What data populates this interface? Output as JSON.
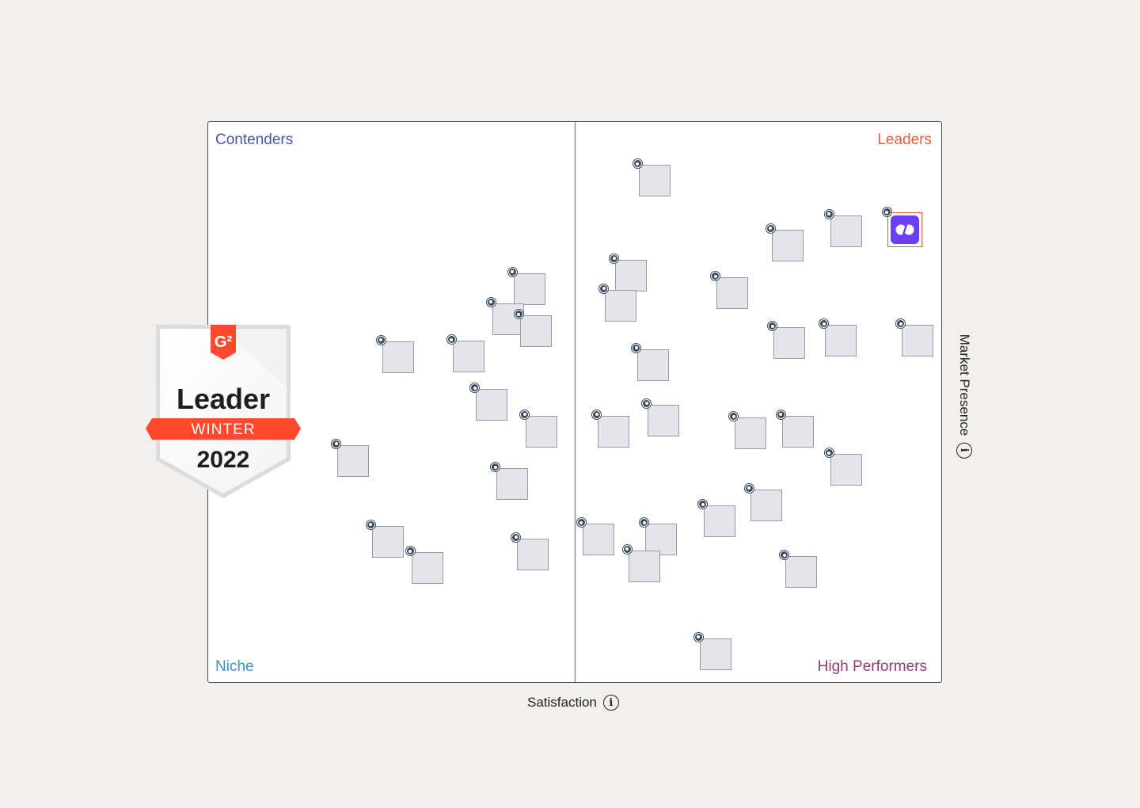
{
  "chart_data": {
    "type": "scatter",
    "title": "",
    "xlabel": "Satisfaction",
    "ylabel": "Market Presence",
    "xlim": [
      0,
      10
    ],
    "ylim": [
      0,
      10
    ],
    "grid": true,
    "quadrants": {
      "top_left": "Contenders",
      "top_right": "Leaders",
      "bottom_left": "Niche",
      "bottom_right": "High Performers"
    },
    "points": [
      {
        "x": 6.09,
        "y": 8.95,
        "featured": false
      },
      {
        "x": 8.7,
        "y": 8.05,
        "featured": false
      },
      {
        "x": 9.5,
        "y": 8.07,
        "featured": true
      },
      {
        "x": 7.9,
        "y": 7.8,
        "featured": false
      },
      {
        "x": 5.77,
        "y": 7.26,
        "featured": false
      },
      {
        "x": 4.38,
        "y": 7.02,
        "featured": false
      },
      {
        "x": 5.63,
        "y": 6.72,
        "featured": false
      },
      {
        "x": 7.15,
        "y": 6.94,
        "featured": false
      },
      {
        "x": 4.09,
        "y": 6.48,
        "featured": false
      },
      {
        "x": 4.47,
        "y": 6.26,
        "featured": false
      },
      {
        "x": 2.59,
        "y": 5.8,
        "featured": false
      },
      {
        "x": 3.55,
        "y": 5.81,
        "featured": false
      },
      {
        "x": 6.07,
        "y": 5.66,
        "featured": false
      },
      {
        "x": 7.93,
        "y": 6.05,
        "featured": false
      },
      {
        "x": 8.63,
        "y": 6.09,
        "featured": false
      },
      {
        "x": 9.68,
        "y": 6.09,
        "featured": false
      },
      {
        "x": 3.87,
        "y": 4.95,
        "featured": false
      },
      {
        "x": 4.55,
        "y": 4.47,
        "featured": false
      },
      {
        "x": 5.53,
        "y": 4.47,
        "featured": false
      },
      {
        "x": 6.21,
        "y": 4.67,
        "featured": false
      },
      {
        "x": 7.4,
        "y": 4.44,
        "featured": false
      },
      {
        "x": 8.04,
        "y": 4.47,
        "featured": false
      },
      {
        "x": 1.98,
        "y": 3.95,
        "featured": false
      },
      {
        "x": 4.15,
        "y": 3.53,
        "featured": false
      },
      {
        "x": 8.7,
        "y": 3.79,
        "featured": false
      },
      {
        "x": 7.61,
        "y": 3.16,
        "featured": false
      },
      {
        "x": 6.98,
        "y": 2.87,
        "featured": false
      },
      {
        "x": 2.45,
        "y": 2.51,
        "featured": false
      },
      {
        "x": 2.99,
        "y": 2.03,
        "featured": false
      },
      {
        "x": 4.43,
        "y": 2.28,
        "featured": false
      },
      {
        "x": 5.32,
        "y": 2.54,
        "featured": false
      },
      {
        "x": 6.18,
        "y": 2.54,
        "featured": false
      },
      {
        "x": 5.95,
        "y": 2.07,
        "featured": false
      },
      {
        "x": 8.09,
        "y": 1.96,
        "featured": false
      },
      {
        "x": 6.92,
        "y": 0.5,
        "featured": false
      }
    ]
  },
  "badge": {
    "title": "Leader",
    "season": "WINTER",
    "year": "2022",
    "logo_icon": "g2-logo-icon"
  },
  "colors": {
    "contenders": "#4a56a6",
    "leaders": "#ef5a3c",
    "niche": "#3f8fcb",
    "high_performers": "#8a3f74",
    "featured": "#6b3ff0",
    "badge_ribbon": "#ff492c"
  },
  "icons": {
    "axis_info": "info-icon"
  }
}
